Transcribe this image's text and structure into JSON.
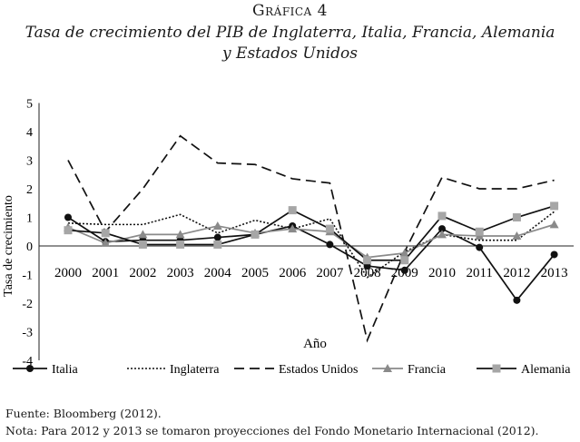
{
  "figure": {
    "label": "Gráfica 4",
    "title_line1": "Tasa de crecimiento del PIB de Inglaterra, Italia, Francia, Alemania",
    "title_line2": "y Estados Unidos"
  },
  "chart_data": {
    "type": "line",
    "title": "Tasa de crecimiento del PIB de Inglaterra, Italia, Francia, Alemania y Estados Unidos",
    "xlabel": "Año",
    "ylabel": "Tasa de crecimiento",
    "ylim": [
      -4,
      5
    ],
    "yticks": [
      5,
      4,
      3,
      2,
      1,
      0,
      -1,
      -2,
      -3,
      -4
    ],
    "x": [
      "2000",
      "2001",
      "2002",
      "2003",
      "2004",
      "2005",
      "2006",
      "2007",
      "2008",
      "2009",
      "2010",
      "2011",
      "2012",
      "2013"
    ],
    "grid": false,
    "legend_position": "bottom",
    "series": [
      {
        "name": "Italia",
        "style": "solid",
        "marker": "circle",
        "color": "#111111",
        "values": [
          1.0,
          0.15,
          0.2,
          0.2,
          0.3,
          0.4,
          0.7,
          0.05,
          -0.7,
          -0.85,
          0.6,
          -0.05,
          -1.9,
          -0.3
        ]
      },
      {
        "name": "Inglaterra",
        "style": "dotted",
        "marker": "none",
        "color": "#111111",
        "values": [
          0.8,
          0.75,
          0.75,
          1.1,
          0.45,
          0.9,
          0.6,
          0.95,
          -1.1,
          -0.2,
          0.4,
          0.2,
          0.2,
          1.2
        ]
      },
      {
        "name": "Estados Unidos",
        "style": "dashed",
        "marker": "none",
        "color": "#111111",
        "values": [
          3.0,
          0.5,
          2.0,
          3.85,
          2.9,
          2.85,
          2.35,
          2.2,
          -3.3,
          -0.2,
          2.4,
          2.0,
          2.0,
          2.3
        ]
      },
      {
        "name": "Francia",
        "style": "solid",
        "marker": "triangle",
        "color": "#8a8a8a",
        "values": [
          0.65,
          0.1,
          0.4,
          0.4,
          0.7,
          0.45,
          0.6,
          0.5,
          -0.4,
          -0.25,
          0.4,
          0.35,
          0.35,
          0.75
        ]
      },
      {
        "name": "Alemania",
        "style": "solid",
        "marker": "square",
        "color": "#111111",
        "marker_color": "#a6a6a6",
        "values": [
          0.55,
          0.45,
          0.05,
          0.05,
          0.05,
          0.4,
          1.25,
          0.6,
          -0.5,
          -0.5,
          1.05,
          0.5,
          1.0,
          1.4
        ]
      }
    ]
  },
  "footnotes": {
    "source": "Fuente: Bloomberg (2012).",
    "note": "Nota: Para 2012 y 2013 se tomaron proyecciones del Fondo Monetario Internacional (2012)."
  }
}
